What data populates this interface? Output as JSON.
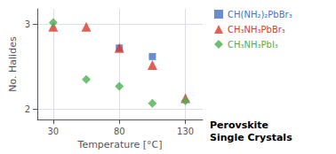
{
  "chart_data": {
    "type": "scatter",
    "title": "Perovskite",
    "subtitle": "Single Crystals",
    "xlabel": "Temperature [°C]",
    "ylabel": "No. Halides",
    "series": [
      {
        "name": "CH(NH₂)₂PbBr₃",
        "color": "#4472C4",
        "marker": "square",
        "x": [
          80,
          105
        ],
        "values": [
          2.72,
          2.62
        ]
      },
      {
        "name": "CH₃NH₃PbBr₃",
        "color": "#D93B2A",
        "marker": "triangle",
        "x": [
          30,
          55,
          80,
          105,
          130
        ],
        "values": [
          2.97,
          2.97,
          2.72,
          2.52,
          2.13
        ]
      },
      {
        "name": "CH₃NH₃PbI₃",
        "color": "#4CAF50",
        "marker": "diamond",
        "x": [
          30,
          55,
          80,
          105,
          130
        ],
        "values": [
          3.02,
          2.35,
          2.27,
          2.07,
          2.1
        ]
      }
    ],
    "xlim": [
      18,
      143
    ],
    "ylim": [
      1.88,
      3.18
    ],
    "xticks": [
      30,
      80,
      130
    ],
    "yticks": [
      2,
      3
    ],
    "grid": true,
    "legend": "right"
  }
}
